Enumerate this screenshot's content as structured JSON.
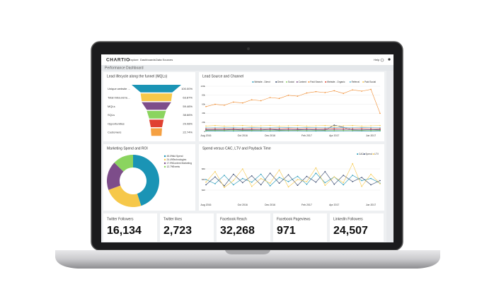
{
  "app": {
    "logo": "CHARTIO",
    "nav": [
      "Explore",
      "Dashboards",
      "Data Sources"
    ],
    "help": "Help"
  },
  "dashboard": {
    "title": "Performance Dashboard"
  },
  "chart_data": [
    {
      "type": "funnel",
      "title": "Lead lifecycle along the funnel (MQLs)",
      "categories": [
        "Unique website ...",
        "Total Inbound le...",
        "MQLs",
        "SQLs",
        "Opportunities",
        "Customers"
      ],
      "values": [
        100,
        63.87,
        59.46,
        38.66,
        29.08,
        22.74
      ],
      "value_labels": [
        "100.00%",
        "63.87%",
        "59.46%",
        "38.66%",
        "29.08%",
        "22.74%"
      ],
      "colors": [
        "#1a94b5",
        "#f6c84a",
        "#7d4d8a",
        "#8bd45f",
        "#e04030",
        "#f5a042"
      ]
    },
    {
      "type": "line",
      "title": "Lead Source and Channel",
      "categories": [
        "Aug 2016",
        null,
        null,
        null,
        "Oct 2016",
        null,
        null,
        "Dec 2016",
        null,
        null,
        null,
        "Feb 2017",
        null,
        null,
        "Apr 2017",
        null,
        null,
        null,
        "Jun 2017",
        null
      ],
      "ylim": [
        0,
        100000
      ],
      "yticks": [
        0,
        {
          "value": 20000,
          "label": "20k"
        },
        {
          "value": 40000,
          "label": "40k"
        },
        {
          "value": 60000,
          "label": "60k"
        },
        {
          "value": 80000,
          "label": "80k"
        },
        {
          "value": 100000,
          "label": "100k"
        }
      ],
      "grid": true,
      "legend": "top",
      "series": [
        {
          "name": "Website - Direct",
          "color": "#1a94b5",
          "values": [
            1000,
            1200,
            1100,
            1000,
            1300,
            1100,
            1200,
            1000,
            1100,
            1200,
            1300,
            1100,
            1000,
            1200,
            1100,
            1300,
            1200,
            1100,
            1000,
            1200
          ]
        },
        {
          "name": "Direct",
          "color": "#2c3e66",
          "values": [
            3000,
            3200,
            3100,
            4000,
            3000,
            3300,
            3100,
            4200,
            3000,
            3100,
            3300,
            4000,
            3100,
            3000,
            14000,
            9000,
            3200,
            3100,
            4000,
            3000
          ]
        },
        {
          "name": "Social",
          "color": "#8bd45f",
          "values": [
            2000,
            2100,
            2000,
            2200,
            2100,
            2000,
            2300,
            2100,
            2000,
            2200,
            2100,
            2000,
            2300,
            2100,
            2000,
            2200,
            2100,
            2000,
            2100,
            2200
          ]
        },
        {
          "name": "Content",
          "color": "#7d4d8a",
          "values": [
            4000,
            4200,
            4100,
            4300,
            4000,
            4200,
            4100,
            4400,
            4200,
            4000,
            4300,
            4100,
            4200,
            4000,
            4300,
            4100,
            4200,
            4000,
            4100,
            4300
          ]
        },
        {
          "name": "Paid Search",
          "color": "#f08c30",
          "values": [
            55000,
            60000,
            58000,
            65000,
            63000,
            70000,
            68000,
            75000,
            73000,
            80000,
            78000,
            85000,
            88000,
            86000,
            90000,
            84000,
            92000,
            89000,
            93000,
            40000
          ]
        },
        {
          "name": "Website - Organic",
          "color": "#e04030",
          "values": [
            6000,
            6200,
            6100,
            6300,
            6000,
            6400,
            6200,
            6100,
            6300,
            6500,
            6200,
            6400,
            6300,
            6100,
            6600,
            6400,
            6200,
            6500,
            6300,
            6100
          ]
        },
        {
          "name": "Referral",
          "color": "#5bb8d6",
          "values": [
            8000,
            8200,
            8100,
            8300,
            8000,
            8400,
            8200,
            8100,
            8300,
            8500,
            8200,
            8400,
            8300,
            8100,
            8600,
            8400,
            8200,
            8500,
            8300,
            8100
          ]
        },
        {
          "name": "Paid Social",
          "color": "#f6c84a",
          "values": [
            12000,
            13000,
            12000,
            12500,
            13000,
            12000,
            12500,
            13000,
            12000,
            12500,
            13000,
            12000,
            12500,
            13000,
            12000,
            12500,
            13000,
            12000,
            12500,
            13000
          ]
        }
      ]
    },
    {
      "type": "pie",
      "title": "Marketing Spend and ROI",
      "donut": true,
      "categories": [
        "Ad Spend",
        "Technologies",
        "Content Marketing",
        "Events"
      ],
      "values": [
        45.0,
        24.4,
        17.9,
        12.7
      ],
      "value_labels": [
        "45.0%",
        "24.4%",
        "17.9%",
        "12.7%"
      ],
      "colors": [
        "#1a94b5",
        "#f6c84a",
        "#7d4d8a",
        "#8bd45f"
      ]
    },
    {
      "type": "line",
      "title": "Spend versus CAC, LTV and Payback Time",
      "categories": [
        "Aug 2016",
        null,
        null,
        null,
        "Oct 2016",
        null,
        null,
        "Dec 2016",
        null,
        null,
        null,
        "Feb 2017",
        null,
        null,
        "Apr 2017",
        null,
        null,
        null,
        "Jun 2017",
        null
      ],
      "ylim": [
        0,
        80
      ],
      "yticks": [
        {
          "value": 20,
          "label": "$20"
        },
        {
          "value": 40,
          "label": "$40"
        },
        {
          "value": 60,
          "label": "$60"
        }
      ],
      "grid": true,
      "legend": "top",
      "series": [
        {
          "name": "CAC",
          "color": "#1a94b5",
          "values": [
            40,
            32,
            48,
            30,
            42,
            35,
            50,
            28,
            44,
            36,
            46,
            31,
            52,
            34,
            45,
            30,
            48,
            38,
            42,
            33
          ]
        },
        {
          "name": "Spend",
          "color": "#2c3e66",
          "values": [
            30,
            45,
            28,
            50,
            34,
            47,
            30,
            52,
            33,
            49,
            29,
            46,
            35,
            55,
            31,
            48,
            36,
            44,
            30,
            38
          ]
        },
        {
          "name": "LTV",
          "color": "#f6c84a",
          "values": [
            35,
            55,
            25,
            38,
            60,
            27,
            42,
            33,
            58,
            26,
            40,
            36,
            62,
            29,
            45,
            34,
            70,
            27,
            50,
            32
          ]
        }
      ]
    }
  ],
  "kpis": [
    {
      "label": "Twitter Followers",
      "value": "16,134"
    },
    {
      "label": "Twitter likes",
      "value": "2,723"
    },
    {
      "label": "Facebook Reach",
      "value": "32,268"
    },
    {
      "label": "Facebook Pageviews",
      "value": "971"
    },
    {
      "label": "LinkedIn Followers",
      "value": "24,507"
    }
  ]
}
